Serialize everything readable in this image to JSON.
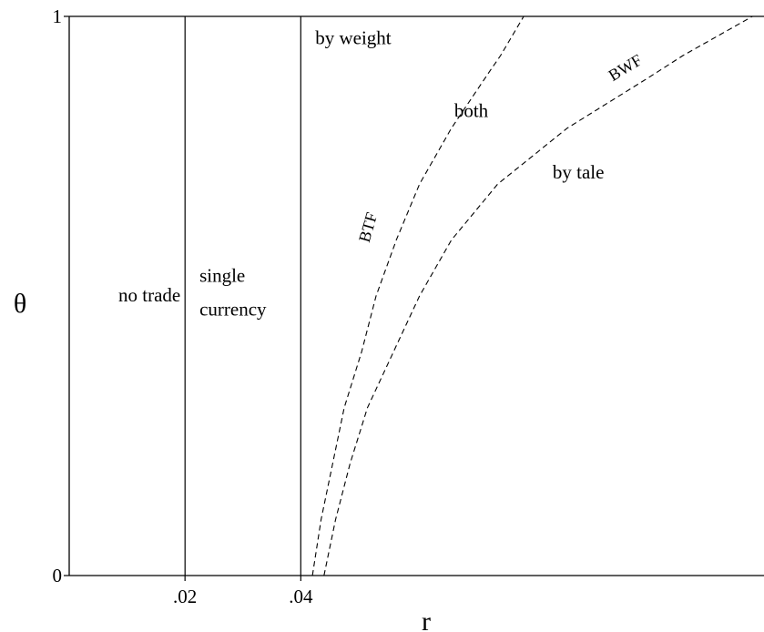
{
  "chart_data": {
    "type": "line",
    "title": "",
    "xlabel": "r",
    "ylabel": "θ",
    "xlim": [
      0,
      0.12
    ],
    "ylim": [
      0,
      1
    ],
    "x_ticks": [
      {
        "value": 0.02,
        "label": ".02"
      },
      {
        "value": 0.04,
        "label": ".04"
      }
    ],
    "y_ticks": [
      {
        "value": 0,
        "label": "0"
      },
      {
        "value": 1,
        "label": "1"
      }
    ],
    "grid": false,
    "series": [
      {
        "name": "",
        "style": "solid",
        "points": [
          [
            0.02,
            0
          ],
          [
            0.02,
            1
          ]
        ]
      },
      {
        "name": "",
        "style": "solid",
        "points": [
          [
            0.04,
            0
          ],
          [
            0.04,
            1
          ]
        ]
      },
      {
        "name": "BTF",
        "style": "dashed",
        "points": [
          [
            0.042,
            0
          ],
          [
            0.0435,
            0.1
          ],
          [
            0.0455,
            0.2
          ],
          [
            0.0475,
            0.3
          ],
          [
            0.0505,
            0.4
          ],
          [
            0.053,
            0.5
          ],
          [
            0.0565,
            0.6
          ],
          [
            0.0605,
            0.7
          ],
          [
            0.066,
            0.8
          ],
          [
            0.0725,
            0.9
          ],
          [
            0.0745,
            0.93
          ],
          [
            0.0785,
            1.0
          ]
        ]
      },
      {
        "name": "BWF",
        "style": "dashed",
        "points": [
          [
            0.044,
            0
          ],
          [
            0.046,
            0.1
          ],
          [
            0.0485,
            0.2
          ],
          [
            0.0515,
            0.3
          ],
          [
            0.056,
            0.4
          ],
          [
            0.0605,
            0.5
          ],
          [
            0.066,
            0.6
          ],
          [
            0.074,
            0.7
          ],
          [
            0.086,
            0.8
          ],
          [
            0.1,
            0.89
          ],
          [
            0.106,
            0.93
          ],
          [
            0.118,
            1.0
          ]
        ]
      }
    ],
    "regions": [
      {
        "label": "no trade",
        "x": 0.0085,
        "y": 0.49
      },
      {
        "label": "single",
        "x": 0.0225,
        "y": 0.525
      },
      {
        "label": "currency",
        "x": 0.0225,
        "y": 0.465
      },
      {
        "label": "by weight",
        "x": 0.0425,
        "y": 0.95
      },
      {
        "label": "both",
        "x": 0.0665,
        "y": 0.82
      },
      {
        "label": "by tale",
        "x": 0.0835,
        "y": 0.71
      }
    ],
    "curve_labels": [
      {
        "label": "BTF",
        "x": 0.0525,
        "y": 0.62,
        "angle": -74
      },
      {
        "label": "BWF",
        "x": 0.0965,
        "y": 0.9,
        "angle": -31
      }
    ]
  }
}
